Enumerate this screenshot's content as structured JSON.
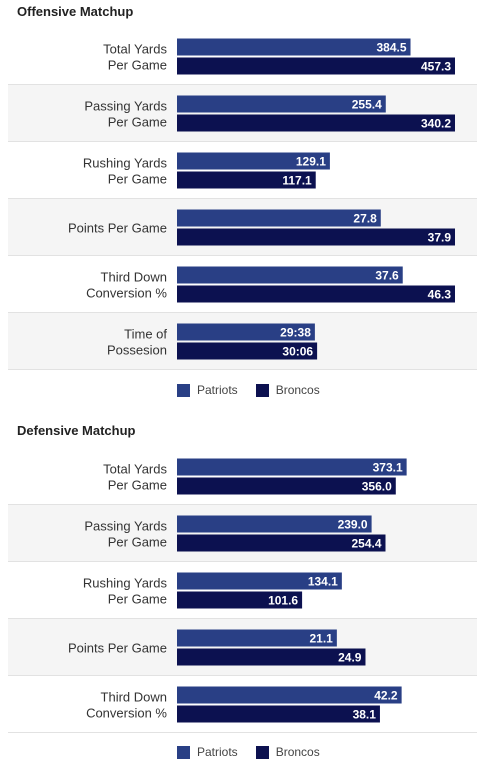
{
  "colors": {
    "patriots": "#293f85",
    "broncos": "#0c1150",
    "band": "#f5f5f5",
    "divider": "#e2e2e2",
    "label": "#333333"
  },
  "legend": {
    "patriots": "Patriots",
    "broncos": "Broncos"
  },
  "chart_data": [
    {
      "type": "bar",
      "orientation": "horizontal",
      "title": "Offensive Matchup",
      "categories": [
        [
          "Total Yards",
          "Per Game"
        ],
        [
          "Passing Yards",
          "Per Game"
        ],
        [
          "Rushing Yards",
          "Per Game"
        ],
        [
          "Points Per Game"
        ],
        [
          "Third Down",
          "Conversion %"
        ],
        [
          "Time of",
          "Possesion"
        ]
      ],
      "series": [
        {
          "name": "Patriots",
          "values": [
            384.5,
            255.4,
            129.1,
            27.8,
            37.6,
            29.633
          ],
          "labels": [
            "384.5",
            "255.4",
            "129.1",
            "27.8",
            "37.6",
            "29:38"
          ],
          "ratio": [
            0.84,
            0.751,
            0.55,
            0.733,
            0.812,
            0.496
          ]
        },
        {
          "name": "Broncos",
          "values": [
            457.3,
            340.2,
            117.1,
            37.9,
            46.3,
            30.1
          ],
          "labels": [
            "457.3",
            "340.2",
            "117.1",
            "37.9",
            "46.3",
            "30:06"
          ],
          "ratio": [
            1.0,
            1.0,
            0.499,
            1.0,
            1.0,
            0.504
          ]
        }
      ],
      "legend_position": "bottom-left"
    },
    {
      "type": "bar",
      "orientation": "horizontal",
      "title": "Defensive Matchup",
      "categories": [
        [
          "Total Yards",
          "Per Game"
        ],
        [
          "Passing Yards",
          "Per Game"
        ],
        [
          "Rushing Yards",
          "Per Game"
        ],
        [
          "Points Per Game"
        ],
        [
          "Third Down",
          "Conversion %"
        ]
      ],
      "series": [
        {
          "name": "Patriots",
          "values": [
            373.1,
            239.0,
            134.1,
            21.1,
            42.2
          ],
          "labels": [
            "373.1",
            "239.0",
            "134.1",
            "21.1",
            "42.2"
          ],
          "ratio": [
            0.826,
            0.7,
            0.593,
            0.575,
            0.808
          ]
        },
        {
          "name": "Broncos",
          "values": [
            356.0,
            254.4,
            101.6,
            24.9,
            38.1
          ],
          "labels": [
            "356.0",
            "254.4",
            "101.6",
            "24.9",
            "38.1"
          ],
          "ratio": [
            0.787,
            0.75,
            0.45,
            0.678,
            0.73
          ]
        }
      ],
      "legend_position": "bottom-left"
    }
  ]
}
